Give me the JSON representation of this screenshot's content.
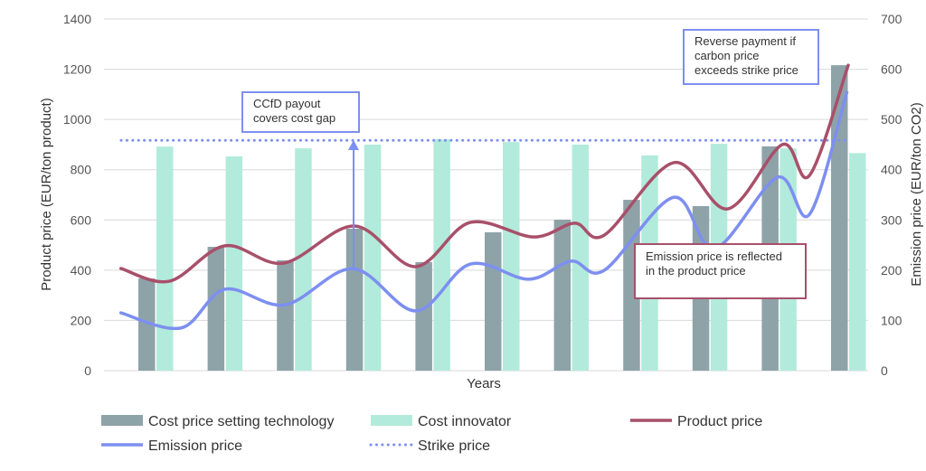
{
  "chart_data": {
    "type": "bar+line",
    "title": "",
    "xlabel": "Years",
    "ylabel_left": "Product price (EUR/ton product)",
    "ylabel_right": "Emission price (EUR/ton CO2)",
    "ylim_left": [
      0,
      1400
    ],
    "ylim_right": [
      0,
      700
    ],
    "yticks_left": [
      "0",
      "200",
      "400",
      "600",
      "800",
      "1000",
      "1200",
      "1400"
    ],
    "yticks_right": [
      "0",
      "100",
      "200",
      "300",
      "400",
      "500",
      "600",
      "700"
    ],
    "grid": true,
    "legend_position": "bottom",
    "categories_count": 11,
    "bar_series": [
      {
        "name": "Cost price setting technology",
        "color": "#8ea3a8",
        "axis": "left",
        "values": [
          367,
          493,
          439,
          565,
          432,
          551,
          601,
          680,
          655,
          893,
          1216
        ]
      },
      {
        "name": "Cost innovator",
        "color": "#b2ebdb",
        "axis": "left",
        "values": [
          892,
          853,
          885,
          900,
          921,
          910,
          900,
          857,
          903,
          885,
          866
        ]
      }
    ],
    "line_series": [
      {
        "name": "Product price",
        "color": "#a8506a",
        "axis": "left",
        "x": [
          -0.5,
          0.2,
          1.0,
          1.85,
          2.87,
          3.75,
          4.54,
          5.46,
          6.05,
          6.48,
          7.48,
          8.26,
          9.05,
          9.44,
          10.0
        ],
        "y": [
          407,
          356,
          497,
          428,
          576,
          414,
          590,
          532,
          587,
          540,
          828,
          644,
          900,
          777,
          1216
        ]
      },
      {
        "name": "Emission price",
        "color": "#7d8ff0",
        "axis": "right",
        "x": [
          -0.5,
          0.37,
          1.0,
          1.87,
          2.85,
          3.76,
          4.54,
          5.39,
          6.0,
          6.48,
          7.48,
          8.07,
          8.98,
          9.44,
          9.98
        ],
        "y": [
          115,
          85,
          162,
          131,
          203,
          119,
          212,
          182,
          218,
          200,
          345,
          243,
          385,
          311,
          554
        ]
      },
      {
        "name": "Strike price",
        "color": "#7d8ff0",
        "axis": "left",
        "style": "dotted",
        "value": 917
      }
    ],
    "annotations": [
      {
        "text_lines": [
          "CCfD payout",
          "covers cost gap"
        ],
        "border": "#7d8ff0"
      },
      {
        "text_lines": [
          "Reverse payment if",
          "carbon price",
          "exceeds strike price"
        ],
        "border": "#7d8ff0"
      },
      {
        "text_lines": [
          "Emission price is reflected",
          "in the product price"
        ],
        "border": "#a8506a"
      }
    ]
  }
}
